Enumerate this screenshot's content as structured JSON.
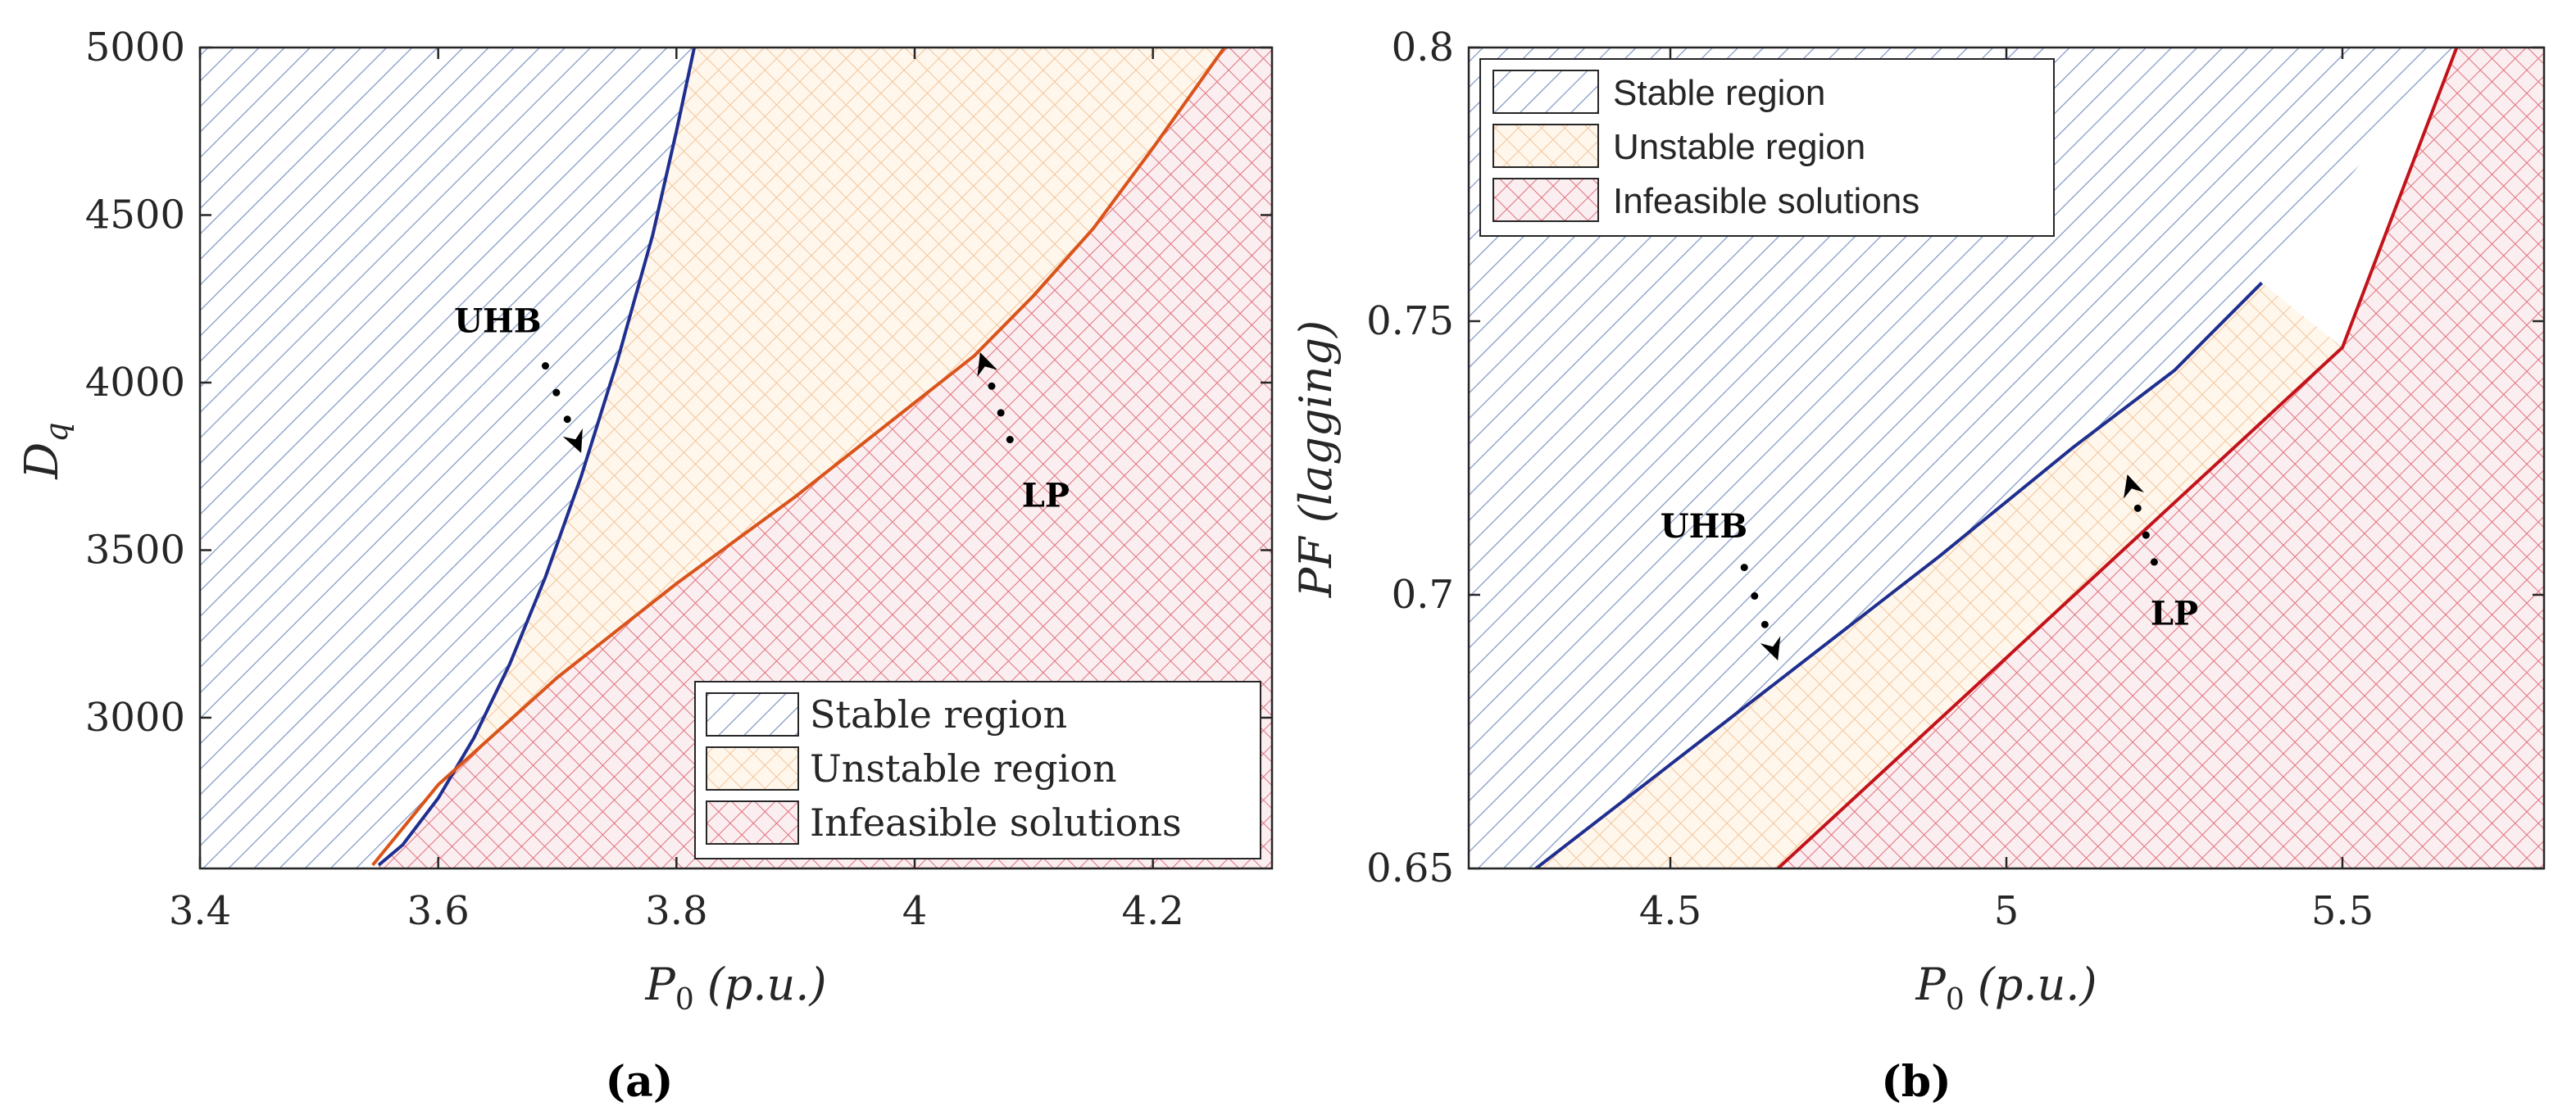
{
  "chart_data": [
    {
      "type": "area",
      "panel_label": "(a)",
      "xlabel": "P_0 (p.u.)",
      "ylabel": "D_q",
      "xlim": [
        3.4,
        4.3
      ],
      "ylim": [
        2550,
        5000
      ],
      "xticks": [
        3.4,
        3.6,
        3.8,
        4.0,
        4.2
      ],
      "xtick_labels": [
        "3.4",
        "3.6",
        "3.8",
        "4",
        "4.2"
      ],
      "yticks": [
        3000,
        3500,
        4000,
        4500,
        5000
      ],
      "ytick_labels": [
        "3000",
        "3500",
        "4000",
        "4500",
        "5000"
      ],
      "series": [
        {
          "name": "UHB boundary",
          "color": "#1f2f8f",
          "x": [
            3.55,
            3.57,
            3.6,
            3.63,
            3.66,
            3.69,
            3.72,
            3.75,
            3.78,
            3.8,
            3.815
          ],
          "y": [
            2560,
            2620,
            2760,
            2940,
            3160,
            3420,
            3720,
            4060,
            4440,
            4750,
            5000
          ]
        },
        {
          "name": "LP boundary",
          "color": "#d9541a",
          "x": [
            3.545,
            3.6,
            3.7,
            3.8,
            3.9,
            4.0,
            4.05,
            4.1,
            4.15,
            4.2,
            4.26
          ],
          "y": [
            2560,
            2800,
            3120,
            3400,
            3660,
            3940,
            4080,
            4260,
            4460,
            4700,
            5000
          ]
        }
      ],
      "legend": {
        "position": "bottom-right",
        "entries": [
          "Stable region",
          "Unstable region",
          "Infeasible solutions"
        ]
      },
      "annotations": [
        {
          "text": "UHB",
          "x": 3.65,
          "y": 4150,
          "arrow_from": [
            3.69,
            4050
          ],
          "arrow_to": [
            3.72,
            3790
          ]
        },
        {
          "text": "LP",
          "x": 4.11,
          "y": 3630,
          "arrow_from": [
            4.08,
            3830
          ],
          "arrow_to": [
            4.055,
            4090
          ]
        }
      ]
    },
    {
      "type": "area",
      "panel_label": "(b)",
      "xlabel": "P_0 (p.u.)",
      "ylabel": "PF (lagging)",
      "xlim": [
        4.2,
        5.8
      ],
      "ylim": [
        0.65,
        0.8
      ],
      "xticks": [
        4.5,
        5.0,
        5.5
      ],
      "xtick_labels": [
        "4.5",
        "5",
        "5.5"
      ],
      "yticks": [
        0.65,
        0.7,
        0.75,
        0.8
      ],
      "ytick_labels": [
        "0.65",
        "0.7",
        "0.75",
        "0.8"
      ],
      "series": [
        {
          "name": "UHB boundary",
          "color": "#1f2f8f",
          "x": [
            4.3,
            4.5,
            4.7,
            4.9,
            5.1,
            5.25,
            5.38
          ],
          "y": [
            0.65,
            0.669,
            0.688,
            0.707,
            0.727,
            0.741,
            0.757
          ]
        },
        {
          "name": "LP boundary",
          "color": "#c3131a",
          "x": [
            4.66,
            5.0,
            5.3,
            5.5,
            5.67
          ],
          "y": [
            0.65,
            0.6885,
            0.7225,
            0.7452,
            0.8
          ]
        }
      ],
      "legend": {
        "position": "top-left",
        "entries": [
          "Stable region",
          "Unstable region",
          "Infeasible solutions"
        ]
      },
      "annotations": [
        {
          "text": "UHB",
          "x": 4.55,
          "y": 0.7105,
          "arrow_from": [
            4.61,
            0.705
          ],
          "arrow_to": [
            4.66,
            0.688
          ]
        },
        {
          "text": "LP",
          "x": 5.25,
          "y": 0.6945,
          "arrow_from": [
            5.22,
            0.706
          ],
          "arrow_to": [
            5.18,
            0.722
          ]
        }
      ]
    }
  ]
}
